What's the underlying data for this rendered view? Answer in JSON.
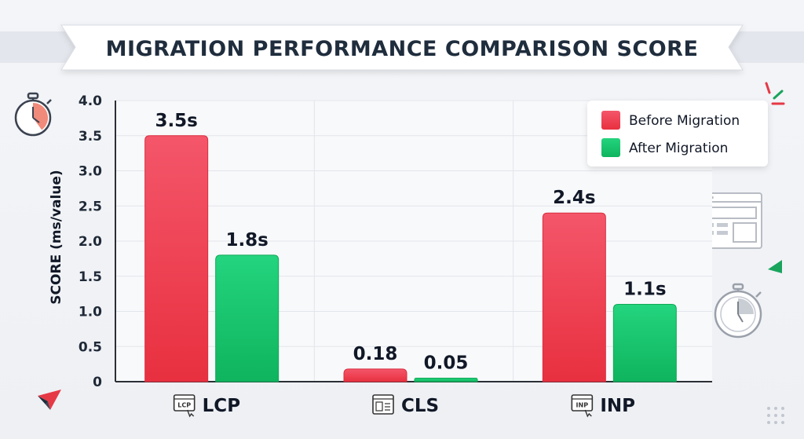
{
  "title": "MIGRATION PERFORMANCE COMPARISON SCORE",
  "colors": {
    "before": "#f0485a",
    "after": "#18c670",
    "title_text": "#1f2d3d",
    "accent_red": "#e63946",
    "accent_green": "#19a45c"
  },
  "legend": {
    "items": [
      {
        "label": "Before Migration",
        "color": "#f0485a"
      },
      {
        "label": "After Migration",
        "color": "#18c670"
      }
    ]
  },
  "icons": {
    "LCP": "lcp-badge-icon",
    "CLS": "layout-shift-icon",
    "INP": "inp-badge-icon"
  },
  "chart_data": {
    "type": "bar",
    "title": "MIGRATION PERFORMANCE COMPARISON SCORE",
    "xlabel": "",
    "ylabel": "SCORE (ms/value)",
    "ylim": [
      0,
      4.0
    ],
    "yticks": [
      "0",
      "0.5",
      "1.0",
      "1.5",
      "2.0",
      "2.5",
      "3.0",
      "3.5",
      "4.0"
    ],
    "ytick_values": [
      0,
      0.5,
      1.0,
      1.5,
      2.0,
      2.5,
      3.0,
      3.5,
      4.0
    ],
    "grid": true,
    "legend_position": "top-right",
    "categories": [
      "LCP",
      "CLS",
      "INP"
    ],
    "category_icon_text": [
      "LCP",
      "",
      "INP"
    ],
    "series": [
      {
        "name": "Before Migration",
        "values": [
          3.5,
          0.18,
          2.4
        ],
        "labels": [
          "3.5s",
          "0.18",
          "2.4s"
        ]
      },
      {
        "name": "After Migration",
        "values": [
          1.8,
          0.05,
          1.1
        ],
        "labels": [
          "1.8s",
          "0.05",
          "1.1s"
        ]
      }
    ]
  }
}
